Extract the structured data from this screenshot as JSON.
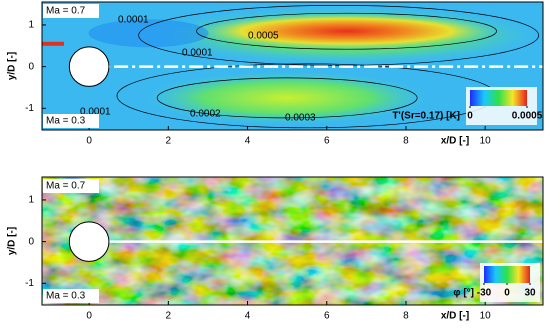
{
  "chart_data": [
    {
      "type": "contour",
      "xlabel": "x/D [-]",
      "ylabel": "y/D [-]",
      "xlim": [
        -1.19,
        11.46
      ],
      "ylim": [
        -1.52,
        1.55
      ],
      "xticks": [
        0,
        2,
        4,
        6,
        8,
        10
      ],
      "yticks": [
        -1,
        0,
        1
      ],
      "annotations": [
        "Ma = 0.7",
        "Ma = 0.3"
      ],
      "contour_labels": [
        "0.0001",
        "0.0001",
        "0.0005",
        "0.0001",
        "0.0002",
        "0.0003"
      ],
      "colorbar_label": "T'(Sr=0.17) [K]",
      "colorbar_ticks": [
        0,
        0.0005
      ]
    },
    {
      "type": "contour",
      "xlabel": "x/D [-]",
      "ylabel": "y/D [-]",
      "xlim": [
        -1.19,
        11.46
      ],
      "ylim": [
        -1.52,
        1.55
      ],
      "xticks": [
        0,
        2,
        4,
        6,
        8,
        10
      ],
      "yticks": [
        -1,
        0,
        1
      ],
      "annotations": [
        "Ma = 0.7",
        "Ma = 0.3"
      ],
      "colorbar_label": "φ [°]",
      "colorbar_ticks": [
        -30,
        0,
        30
      ]
    }
  ]
}
